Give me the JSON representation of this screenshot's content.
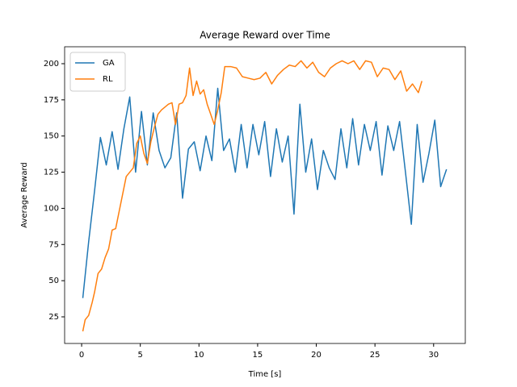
{
  "chart_data": {
    "type": "line",
    "title": "Average Reward over Time",
    "x_label": "Time [s]",
    "y_label": "Average Reward",
    "xlim": [
      -1.45,
      32.7
    ],
    "ylim": [
      6.6,
      211.7
    ],
    "xticks": [
      0,
      5,
      10,
      15,
      20,
      25,
      30
    ],
    "yticks": [
      25,
      50,
      75,
      100,
      125,
      150,
      175,
      200
    ],
    "legend": "upper left",
    "series": [
      {
        "name": "GA",
        "color": "#1f77b4",
        "x": [
          0.1,
          0.6,
          1.1,
          1.6,
          2.1,
          2.6,
          3.1,
          3.6,
          4.1,
          4.6,
          5.1,
          5.6,
          6.1,
          6.6,
          7.1,
          7.6,
          8.1,
          8.6,
          9.1,
          9.6,
          10.1,
          10.6,
          11.1,
          11.6,
          12.1,
          12.6,
          13.1,
          13.6,
          14.1,
          14.6,
          15.1,
          15.6,
          16.1,
          16.6,
          17.1,
          17.6,
          18.1,
          18.6,
          19.1,
          19.6,
          20.1,
          20.6,
          21.1,
          21.6,
          22.1,
          22.6,
          23.1,
          23.6,
          24.1,
          24.6,
          25.1,
          25.6,
          26.1,
          26.6,
          27.1,
          27.6,
          28.1,
          28.6,
          29.1,
          29.6,
          30.1,
          30.6,
          31.1
        ],
        "values": [
          38,
          77,
          112,
          149,
          130,
          153,
          127,
          155,
          177,
          125,
          167,
          130,
          166,
          140,
          128,
          135,
          166,
          107,
          141,
          146,
          126,
          150,
          133,
          183,
          140,
          148,
          125,
          158,
          128,
          158,
          137,
          160,
          122,
          155,
          132,
          150,
          96,
          172,
          125,
          148,
          113,
          140,
          128,
          120,
          155,
          128,
          162,
          130,
          158,
          140,
          160,
          123,
          157,
          140,
          160,
          125,
          89,
          158,
          118,
          138,
          161,
          115,
          127
        ]
      },
      {
        "name": "RL",
        "color": "#ff7f0e",
        "x": [
          0.1,
          0.3,
          0.6,
          0.9,
          1.1,
          1.4,
          1.7,
          2.0,
          2.3,
          2.6,
          2.9,
          3.2,
          3.5,
          3.8,
          4.1,
          4.4,
          4.7,
          5.0,
          5.3,
          5.6,
          5.9,
          6.2,
          6.5,
          6.8,
          7.1,
          7.4,
          7.7,
          8.0,
          8.3,
          8.6,
          8.9,
          9.2,
          9.5,
          9.8,
          10.1,
          10.4,
          10.7,
          11.0,
          11.3,
          11.6,
          11.9,
          12.2,
          12.7,
          13.2,
          13.7,
          14.2,
          14.7,
          15.2,
          15.7,
          16.2,
          16.7,
          17.2,
          17.7,
          18.2,
          18.7,
          19.2,
          19.7,
          20.2,
          20.7,
          21.2,
          21.7,
          22.2,
          22.7,
          23.2,
          23.7,
          24.2,
          24.7,
          25.2,
          25.7,
          26.2,
          26.7,
          27.2,
          27.7,
          28.2,
          28.7,
          29.0
        ],
        "values": [
          15,
          23,
          26,
          35,
          42,
          55,
          58,
          66,
          72,
          85,
          86,
          98,
          110,
          122,
          125,
          128,
          145,
          150,
          138,
          131,
          146,
          156,
          165,
          168,
          170,
          172,
          173,
          158,
          172,
          173,
          178,
          197,
          178,
          188,
          179,
          182,
          172,
          165,
          158,
          168,
          180,
          198,
          198,
          197,
          191,
          190,
          189,
          190,
          194,
          186,
          192,
          196,
          199,
          198,
          202,
          197,
          201,
          194,
          191,
          197,
          200,
          202,
          200,
          202,
          196,
          202,
          201,
          191,
          197,
          196,
          189,
          195,
          181,
          186,
          180,
          188
        ]
      }
    ]
  }
}
